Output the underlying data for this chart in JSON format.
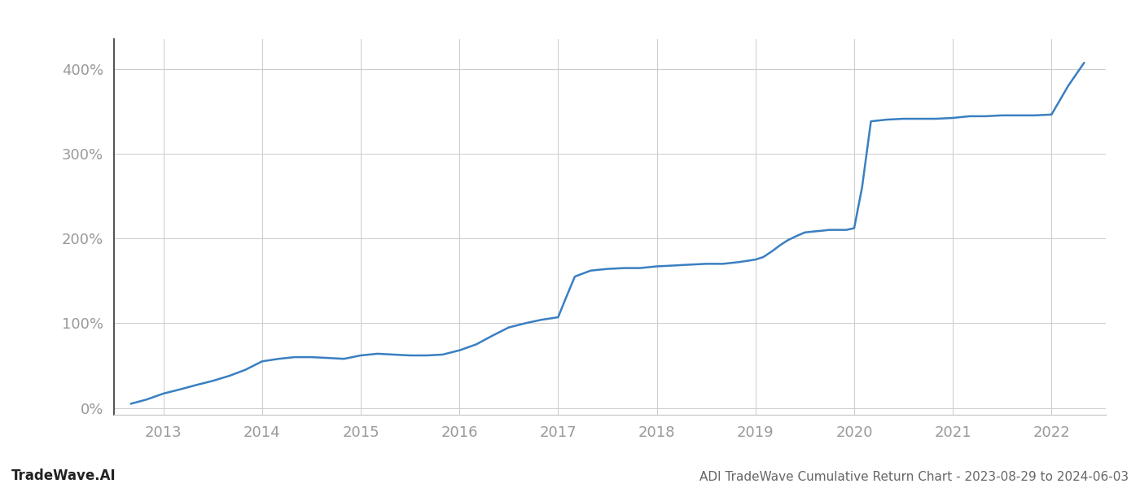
{
  "title_footer": "ADI TradeWave Cumulative Return Chart - 2023-08-29 to 2024-06-03",
  "watermark": "TradeWave.AI",
  "line_color": "#3a7fc1",
  "background_color": "#ffffff",
  "grid_color": "#cccccc",
  "x_values": [
    2012.67,
    2012.83,
    2013.0,
    2013.17,
    2013.33,
    2013.5,
    2013.67,
    2013.83,
    2014.0,
    2014.17,
    2014.33,
    2014.5,
    2014.67,
    2014.83,
    2015.0,
    2015.17,
    2015.33,
    2015.5,
    2015.67,
    2015.83,
    2016.0,
    2016.17,
    2016.33,
    2016.5,
    2016.67,
    2016.83,
    2017.0,
    2017.08,
    2017.17,
    2017.33,
    2017.5,
    2017.67,
    2017.83,
    2018.0,
    2018.17,
    2018.33,
    2018.5,
    2018.67,
    2018.83,
    2019.0,
    2019.08,
    2019.17,
    2019.25,
    2019.33,
    2019.42,
    2019.5,
    2019.58,
    2019.67,
    2019.75,
    2019.83,
    2019.92,
    2020.0,
    2020.08,
    2020.17,
    2020.33,
    2020.5,
    2020.67,
    2020.83,
    2021.0,
    2021.17,
    2021.33,
    2021.5,
    2021.67,
    2021.83,
    2022.0,
    2022.17,
    2022.33
  ],
  "y_values": [
    5,
    10,
    17,
    22,
    27,
    32,
    38,
    45,
    55,
    58,
    60,
    60,
    59,
    58,
    62,
    64,
    63,
    62,
    62,
    63,
    68,
    75,
    85,
    95,
    100,
    104,
    107,
    130,
    155,
    162,
    164,
    165,
    165,
    167,
    168,
    169,
    170,
    170,
    172,
    175,
    178,
    185,
    192,
    198,
    203,
    207,
    208,
    209,
    210,
    210,
    210,
    212,
    260,
    338,
    340,
    341,
    341,
    341,
    342,
    344,
    344,
    345,
    345,
    345,
    346,
    380,
    407
  ],
  "xlim": [
    2012.5,
    2022.55
  ],
  "ylim": [
    -8,
    435
  ],
  "yticks": [
    0,
    100,
    200,
    300,
    400
  ],
  "ytick_labels": [
    "0%",
    "100%",
    "200%",
    "300%",
    "400%"
  ],
  "xticks": [
    2013,
    2014,
    2015,
    2016,
    2017,
    2018,
    2019,
    2020,
    2021,
    2022
  ],
  "xtick_labels": [
    "2013",
    "2014",
    "2015",
    "2016",
    "2017",
    "2018",
    "2019",
    "2020",
    "2021",
    "2022"
  ],
  "tick_label_color": "#999999",
  "footer_color": "#666666",
  "watermark_color": "#222222",
  "line_width": 1.8,
  "left_spine_color": "#333333",
  "bottom_spine_color": "#cccccc"
}
